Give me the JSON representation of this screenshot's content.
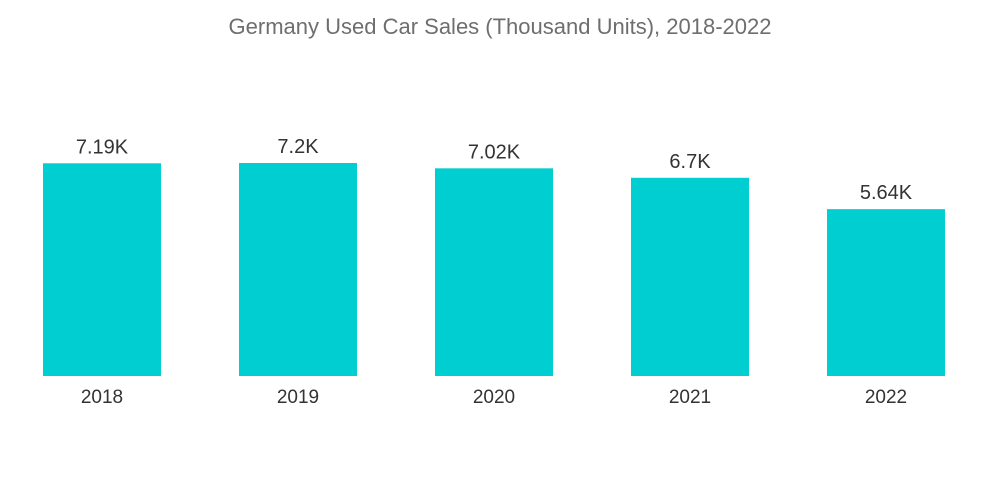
{
  "chart_data": {
    "type": "bar",
    "title": "Germany Used Car Sales (Thousand Units), 2018-2022",
    "categories": [
      "2018",
      "2019",
      "2020",
      "2021",
      "2022"
    ],
    "values": [
      7.19,
      7.2,
      7.02,
      6.7,
      5.64
    ],
    "data_labels": [
      "7.19K",
      "7.2K",
      "7.02K",
      "6.7K",
      "5.64K"
    ],
    "xlabel": "",
    "ylabel": "",
    "ylim": [
      0,
      7.2
    ],
    "grid": false,
    "legend": "none",
    "bar_color": "#00ced1"
  }
}
